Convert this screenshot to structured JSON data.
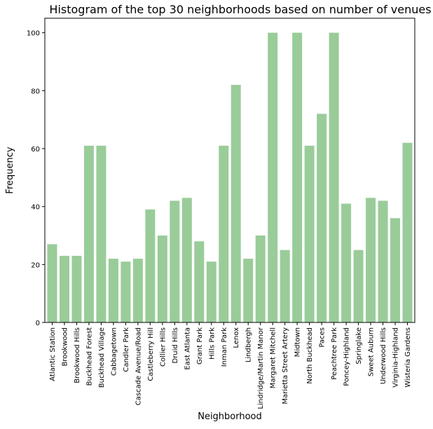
{
  "chart_data": {
    "type": "bar",
    "title": "Histogram of the top 30 neighborhoods based on number of venues",
    "xlabel": "Neighborhood",
    "ylabel": "Frequency",
    "ylim": [
      0,
      105
    ],
    "yticks": [
      0,
      20,
      40,
      60,
      80,
      100
    ],
    "grid": false,
    "bar_color": "#99cc99",
    "categories": [
      "Atlantic Station",
      "Brookwood",
      "Brookwood Hills",
      "Buckhead Forest",
      "Buckhead Village",
      "Cabbagetown",
      "Candler Park",
      "Cascade Avenue/Road",
      "Castleberry Hill",
      "Collier Hills",
      "Druid Hills",
      "East Atlanta",
      "Grant Park",
      "Hills Park",
      "Inman Park",
      "Lenox",
      "Lindbergh",
      "Lindridge/Martin Manor",
      "Margaret Mitchell",
      "Marietta Street Artery",
      "Midtown",
      "North Buckhead",
      "Paces",
      "Peachtree Park",
      "Poncey-Highland",
      "Springlake",
      "Sweet Auburn",
      "Underwood Hills",
      "Virginia-Highland",
      "Wisteria Gardens"
    ],
    "values": [
      27,
      23,
      23,
      61,
      61,
      22,
      21,
      22,
      39,
      30,
      42,
      43,
      28,
      21,
      61,
      82,
      22,
      30,
      100,
      25,
      100,
      61,
      72,
      100,
      41,
      25,
      43,
      42,
      36,
      62
    ]
  }
}
